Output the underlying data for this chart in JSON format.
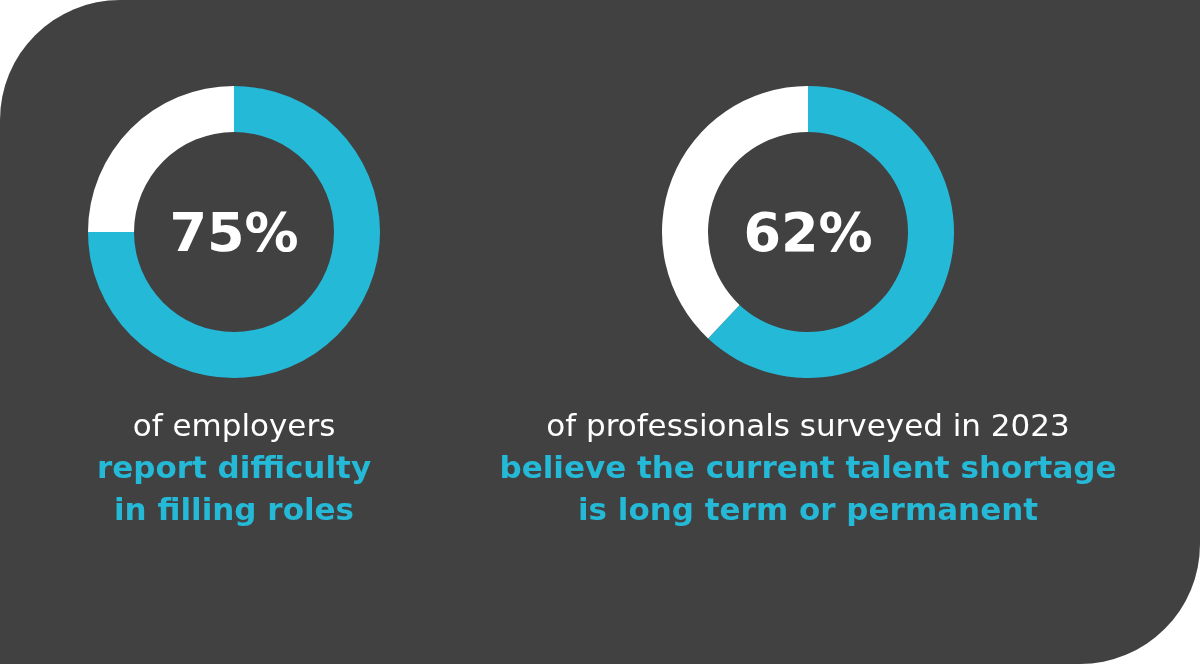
{
  "chart_data": [
    {
      "type": "donut",
      "categories": [
        null,
        null
      ],
      "values": [
        75,
        25
      ],
      "colors": [
        "#25b9d8",
        "#ffffff"
      ],
      "value_labels": [
        "75%",
        null
      ],
      "title": "of employers",
      "subtitle": "report difficulty in filling roles"
    },
    {
      "type": "donut",
      "categories": [
        null,
        null
      ],
      "values": [
        62,
        38
      ],
      "colors": [
        "#25b9d8",
        "#ffffff"
      ],
      "value_labels": [
        "62%",
        null
      ],
      "title": "of professionals surveyed in 2023",
      "subtitle": "believe the current talent shortage is long term or permanent"
    }
  ]
}
